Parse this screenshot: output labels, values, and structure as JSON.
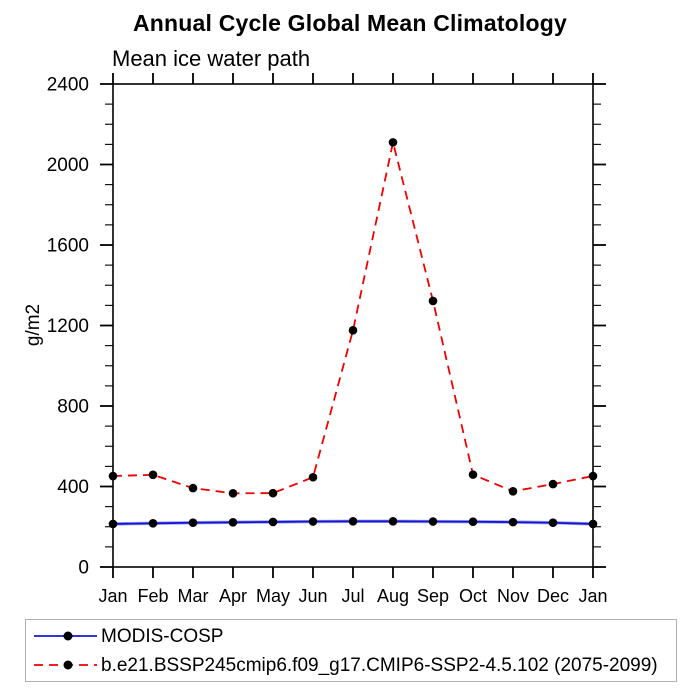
{
  "chart_data": {
    "type": "line",
    "title": "Annual Cycle Global Mean Climatology",
    "subtitle": "Mean ice water path",
    "ylabel": "g/m2",
    "xlabel": "",
    "categories": [
      "Jan",
      "Feb",
      "Mar",
      "Apr",
      "May",
      "Jun",
      "Jul",
      "Aug",
      "Sep",
      "Oct",
      "Nov",
      "Dec",
      "Jan"
    ],
    "ylim": [
      0,
      2400
    ],
    "yticks": [
      0,
      400,
      800,
      1200,
      1600,
      2000,
      2400
    ],
    "minor_tick_interval": 100,
    "grid": false,
    "legend_position": "bottom box, left-aligned",
    "series": [
      {
        "name": "MODIS-COSP",
        "color": "#1414d6",
        "halo_color": "#9aa0ea",
        "line_style": "solid",
        "marker": "filled-black-circle",
        "values": [
          214,
          217,
          220,
          222,
          224,
          226,
          227,
          227,
          226,
          225,
          223,
          220,
          214
        ]
      },
      {
        "name": "b.e21.BSSP245cmip6.f09_g17.CMIP6-SSP2-4.5.102 (2075-2099)",
        "color": "#f20000",
        "line_style": "dashed",
        "marker": "filled-black-circle",
        "values": [
          452,
          458,
          392,
          366,
          367,
          446,
          1176,
          2110,
          1322,
          459,
          376,
          412,
          452
        ]
      }
    ],
    "marker_color": "#000000",
    "axis_color": "#000000"
  }
}
